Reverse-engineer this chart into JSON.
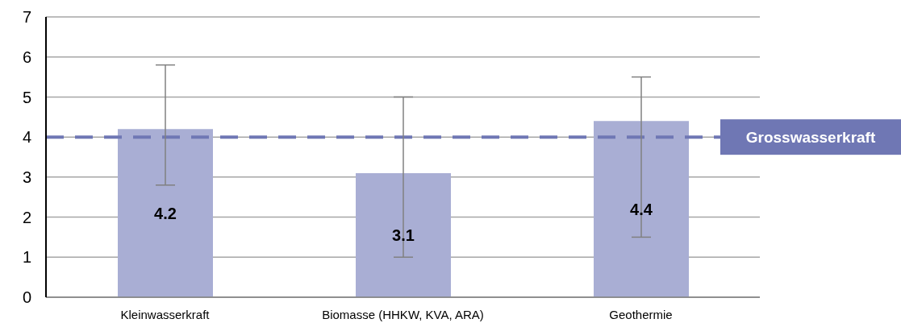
{
  "chart_data": {
    "type": "bar",
    "categories": [
      "Kleinwasserkraft",
      "Biomasse (HHKW, KVA, ARA)",
      "Geothermie"
    ],
    "values": [
      4.2,
      3.1,
      4.4
    ],
    "color": "#a9aed4",
    "errors": [
      [
        2.8,
        5.8
      ],
      [
        1.0,
        5.0
      ],
      [
        1.5,
        5.5
      ]
    ],
    "data_labels": true,
    "ylim": [
      0,
      7
    ],
    "yticks": [
      0,
      1,
      2,
      3,
      4,
      5,
      6,
      7
    ],
    "grid": "y",
    "ref_lines": [
      {
        "axis": "y",
        "value": 4,
        "label": "Grosswasserkraft",
        "color": "#6f77b4",
        "line_style": "dashed"
      }
    ]
  }
}
